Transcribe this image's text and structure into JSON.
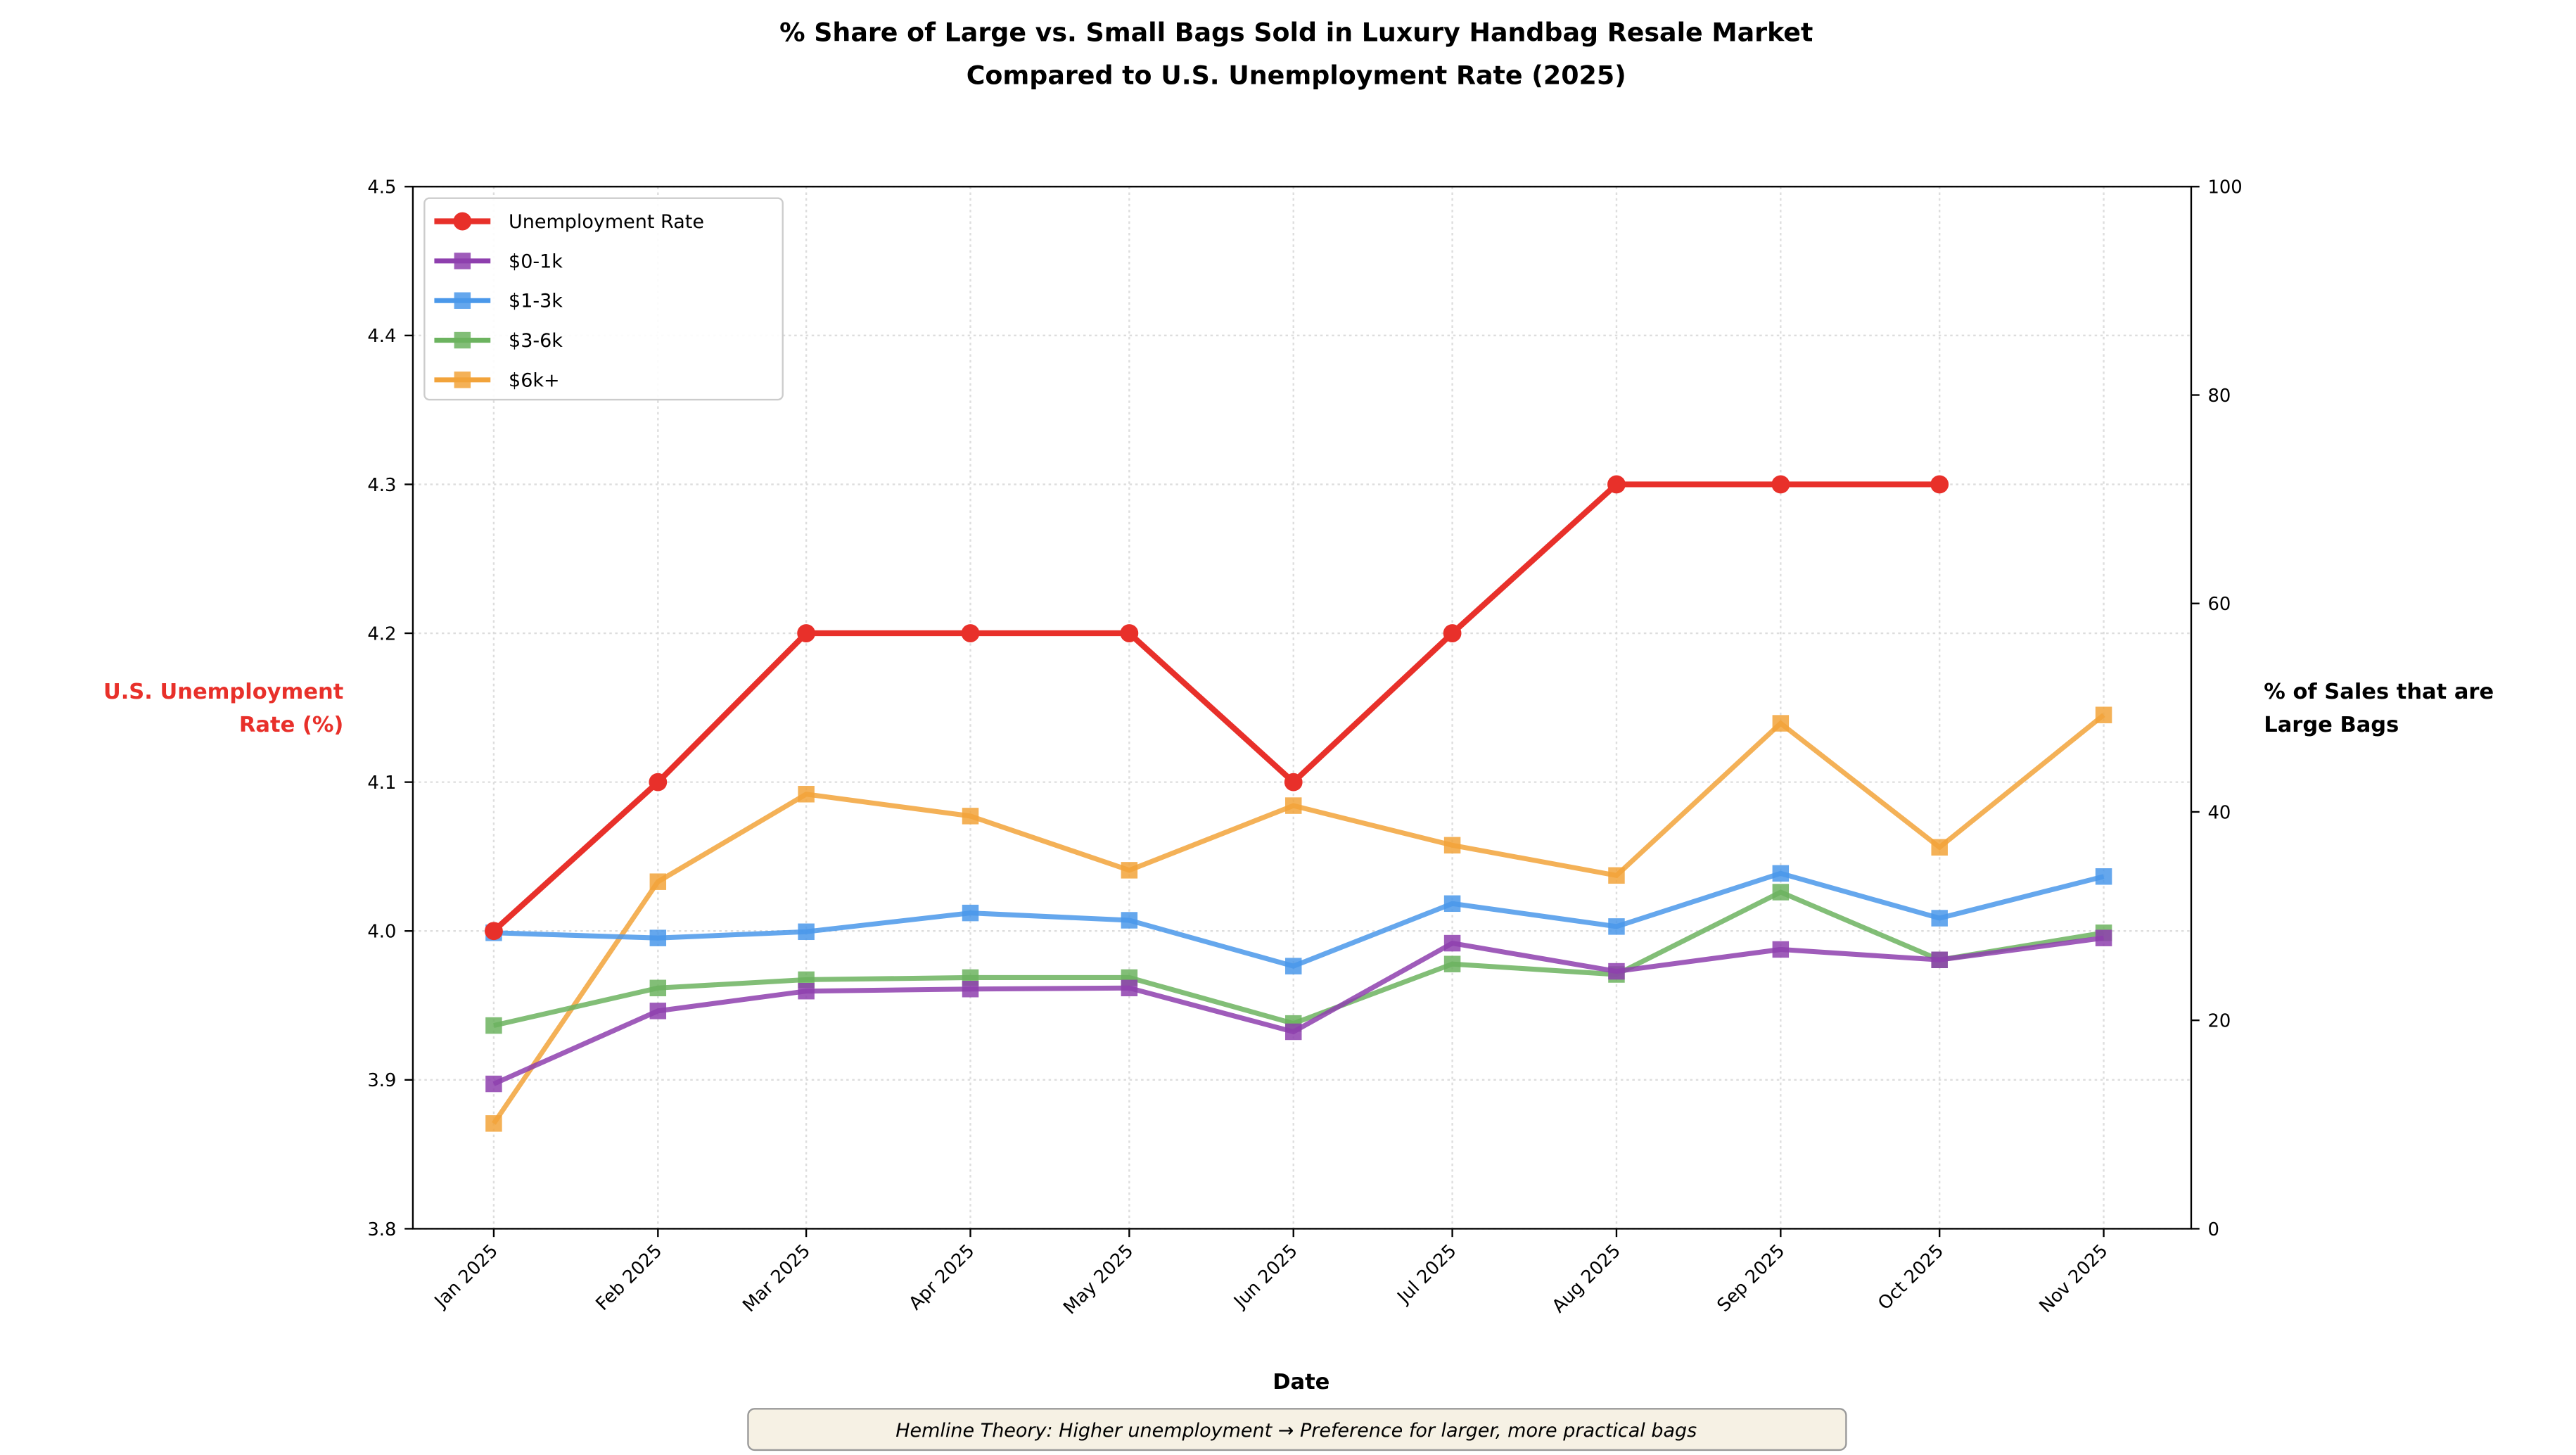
{
  "chart_data": {
    "type": "line",
    "title": [
      "% Share of Large vs. Small Bags Sold in Luxury Handbag Resale Market",
      "Compared to U.S. Unemployment Rate (2025)"
    ],
    "xlabel": "Date",
    "ylabel_left": "U.S. Unemployment Rate (%)",
    "ylabel_left_lines": [
      "U.S. Unemployment",
      "Rate (%)"
    ],
    "ylabel_right": "% of Sales that are Large Bags",
    "ylabel_right_lines": [
      "% of Sales that are",
      "Large Bags"
    ],
    "categories": [
      "Jan 2025",
      "Feb 2025",
      "Mar 2025",
      "Apr 2025",
      "May 2025",
      "Jun 2025",
      "Jul 2025",
      "Aug 2025",
      "Sep 2025",
      "Oct 2025",
      "Nov 2025"
    ],
    "x_day_of_year": [
      0,
      31,
      59,
      90,
      120,
      151,
      181,
      212,
      243,
      273,
      304
    ],
    "ylim_left": [
      3.8,
      4.5
    ],
    "yticks_left": [
      "3.8",
      "3.9",
      "4.0",
      "4.1",
      "4.2",
      "4.3",
      "4.4",
      "4.5"
    ],
    "ylim_right": [
      0,
      100
    ],
    "yticks_right": [
      "0",
      "20",
      "40",
      "60",
      "80",
      "100"
    ],
    "grid": true,
    "legend_position": "top-left",
    "series": [
      {
        "name": "Unemployment Rate",
        "axis": "left",
        "color": "#e8302a",
        "marker": "circle",
        "values": [
          4.0,
          4.1,
          4.2,
          4.2,
          4.2,
          4.1,
          4.2,
          4.3,
          4.3,
          4.3,
          null
        ]
      },
      {
        "name": "$0-1k",
        "axis": "right",
        "color": "#8e3fae",
        "marker": "square",
        "values": [
          13.9,
          20.9,
          22.8,
          23.0,
          23.1,
          18.9,
          27.4,
          24.7,
          26.8,
          25.8,
          27.9
        ]
      },
      {
        "name": "$1-3k",
        "axis": "right",
        "color": "#4a98ea",
        "marker": "square",
        "values": [
          28.4,
          27.9,
          28.5,
          30.3,
          29.6,
          25.2,
          31.2,
          29.0,
          34.1,
          29.8,
          33.8
        ]
      },
      {
        "name": "$3-6k",
        "axis": "right",
        "color": "#6cb35f",
        "marker": "square",
        "values": [
          19.5,
          23.1,
          23.9,
          24.1,
          24.1,
          19.7,
          25.4,
          24.4,
          32.3,
          25.8,
          28.4
        ]
      },
      {
        "name": "$6k+",
        "axis": "right",
        "color": "#f2a33a",
        "marker": "square",
        "values": [
          10.1,
          33.3,
          41.7,
          39.6,
          34.4,
          40.6,
          36.8,
          33.9,
          48.5,
          36.6,
          49.3
        ]
      }
    ],
    "annotation": "Hemline Theory: Higher unemployment → Preference for larger, more practical bags"
  }
}
